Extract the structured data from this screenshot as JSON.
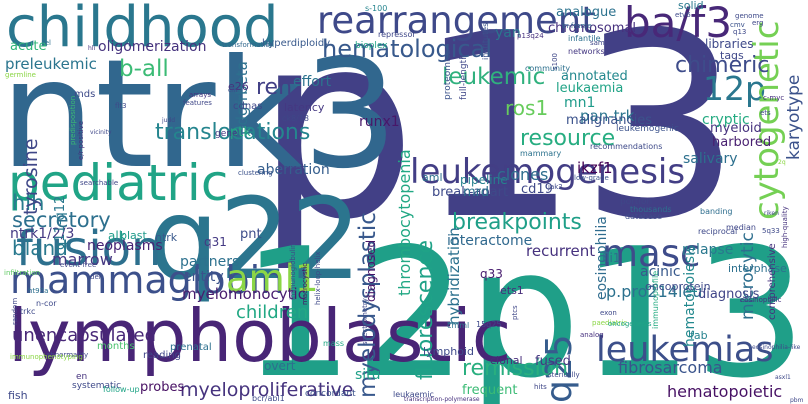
{
  "words": [
    {
      "text": "p13",
      "color": "#424086"
    },
    {
      "text": "12p13",
      "color": "#1f9f88"
    },
    {
      "text": "ntrk3",
      "color": "#31678e"
    },
    {
      "text": "q22",
      "color": "#2b758e"
    },
    {
      "text": "lymphoblastic",
      "color": "#482576"
    },
    {
      "text": "childhood",
      "color": "#2a778e"
    },
    {
      "text": "fusion",
      "color": "#2d708e"
    },
    {
      "text": "pediatric",
      "color": "#20a486"
    },
    {
      "text": "mammaglobin",
      "color": "#3c508b"
    },
    {
      "text": "rearrangement",
      "color": "#3e4989"
    },
    {
      "text": "ba/f3",
      "color": "#482878"
    },
    {
      "text": "leukemogenesis",
      "color": "#433e85"
    },
    {
      "text": "leukemias",
      "color": "#3c4f8a"
    },
    {
      "text": "masc",
      "color": "#3e4c8a"
    },
    {
      "text": "aml1",
      "color": "#8bd646"
    },
    {
      "text": "12p",
      "color": "#2a778e"
    },
    {
      "text": "q25",
      "color": "#365c8d"
    },
    {
      "text": "cytogenetic",
      "color": "#75d054"
    },
    {
      "text": "hematological",
      "color": "#38598c"
    },
    {
      "text": "leukemic",
      "color": "#30b17e"
    },
    {
      "text": "myelodysplastic",
      "color": "#38588c"
    },
    {
      "text": "fluorescence",
      "color": "#1fa287"
    },
    {
      "text": "b-all",
      "color": "#3bbb75"
    },
    {
      "text": "breakpoints",
      "color": "#1f9f88"
    },
    {
      "text": "translocations",
      "color": "#25858e"
    },
    {
      "text": "resource",
      "color": "#27ad81"
    },
    {
      "text": "remission",
      "color": "#29af7f"
    },
    {
      "text": "reh",
      "color": "#424086"
    },
    {
      "text": "chimeric",
      "color": "#3e4c8a"
    },
    {
      "text": "hlh",
      "color": "#287d8e"
    },
    {
      "text": "secretory",
      "color": "#2d708e"
    },
    {
      "text": "bland",
      "color": "#29798e"
    },
    {
      "text": "ros1",
      "color": "#67cc5c"
    },
    {
      "text": "myeloproliferative",
      "color": "#46337e"
    },
    {
      "text": "children",
      "color": "#22a884"
    },
    {
      "text": "unencapsulated",
      "color": "#482878"
    },
    {
      "text": "myelomonocytic",
      "color": "#481d6f"
    },
    {
      "text": "karyotype",
      "color": "#3b528b"
    },
    {
      "text": "thrombocytopenia",
      "color": "#22a884"
    },
    {
      "text": "hybridization",
      "color": "#2c718e"
    },
    {
      "text": "microcytic",
      "color": "#2e6f8e"
    },
    {
      "text": "fibrosarcoma",
      "color": "#3a548c"
    },
    {
      "text": "p.pro214leu",
      "color": "#2c718e"
    },
    {
      "text": "hematopoietic",
      "color": "#471164"
    },
    {
      "text": "hematopoiesis",
      "color": "#23898e"
    },
    {
      "text": "eosinophilia",
      "color": "#2f6c8e"
    },
    {
      "text": "oligomerization",
      "color": "#46337e"
    },
    {
      "text": "preleukemic",
      "color": "#2b758e"
    },
    {
      "text": "acute",
      "color": "#32b67a"
    },
    {
      "text": "tyrosine",
      "color": "#3f4788"
    },
    {
      "text": "ntrk1/2/3",
      "color": "#443983"
    },
    {
      "text": "marrow",
      "color": "#453882"
    },
    {
      "text": "neoplasms",
      "color": "#482475"
    },
    {
      "text": "q11-q12",
      "color": "#2a788e"
    },
    {
      "text": "pdgfrbeta",
      "color": "#2d708e"
    },
    {
      "text": "ptk",
      "color": "#25ab82"
    },
    {
      "text": "effort",
      "color": "#2c738e"
    },
    {
      "text": "runx1",
      "color": "#481769"
    },
    {
      "text": "aberration",
      "color": "#355e8d"
    },
    {
      "text": "clones",
      "color": "#2e6e8e"
    },
    {
      "text": "break-apart",
      "color": "#3e4a89"
    },
    {
      "text": "pan-trk",
      "color": "#2b758e"
    },
    {
      "text": "mn1",
      "color": "#1e9b8a"
    },
    {
      "text": "ikzf1",
      "color": "#440154"
    },
    {
      "text": "cd19",
      "color": "#3f4889"
    },
    {
      "text": "mrd",
      "color": "#2c728e"
    },
    {
      "text": "interactome",
      "color": "#30698e"
    },
    {
      "text": "recurrent",
      "color": "#46327e"
    },
    {
      "text": "relapse",
      "color": "#2a788e"
    },
    {
      "text": "acinic",
      "color": "#38598c"
    },
    {
      "text": "oncoprotein",
      "color": "#3e4a89"
    },
    {
      "text": "myeloid",
      "color": "#46327e"
    },
    {
      "text": "salivary",
      "color": "#2d708e"
    },
    {
      "text": "harbored",
      "color": "#481f70"
    },
    {
      "text": "cryptic",
      "color": "#25ab82"
    },
    {
      "text": "leukaemia",
      "color": "#20a386"
    },
    {
      "text": "malignancies",
      "color": "#3b528b"
    },
    {
      "text": "annotated",
      "color": "#23888e"
    },
    {
      "text": "chromosomal",
      "color": "#46307e"
    },
    {
      "text": "analogue",
      "color": "#2c728e"
    },
    {
      "text": "yan",
      "color": "#2b758e"
    },
    {
      "text": "solid",
      "color": "#29798e"
    },
    {
      "text": "libraries",
      "color": "#3e4989"
    },
    {
      "text": "tags",
      "color": "#3f4889"
    },
    {
      "text": "diagnosis",
      "color": "#404588"
    },
    {
      "text": "interphase",
      "color": "#2d708e"
    },
    {
      "text": "frequent",
      "color": "#3bbb75"
    },
    {
      "text": "partners",
      "color": "#2d718e"
    },
    {
      "text": "entity",
      "color": "#3b528b"
    },
    {
      "text": "pnt",
      "color": "#3d4d8a"
    },
    {
      "text": "q31",
      "color": "#443983"
    },
    {
      "text": "q33",
      "color": "#481d6f"
    },
    {
      "text": "alk",
      "color": "#1e9d89"
    },
    {
      "text": "ntrk",
      "color": "#38598c"
    },
    {
      "text": "fish",
      "color": "#3e4989"
    },
    {
      "text": "probes",
      "color": "#471063"
    },
    {
      "text": "fused",
      "color": "#453781"
    },
    {
      "text": "situ",
      "color": "#1fa088"
    },
    {
      "text": "clonal",
      "color": "#472c7a"
    },
    {
      "text": "overt",
      "color": "#2e6e8e"
    },
    {
      "text": "lymphoid",
      "color": "#3e4989"
    },
    {
      "text": "fab",
      "color": "#26828e"
    },
    {
      "text": "diagnosed",
      "color": "#481769"
    },
    {
      "text": "fli1",
      "color": "#2f6c8e"
    },
    {
      "text": "ets1",
      "color": "#472c7a"
    },
    {
      "text": "blast",
      "color": "#1f9a8a"
    },
    {
      "text": "latency",
      "color": "#453882"
    },
    {
      "text": "hyperdiploidy",
      "color": "#38598c"
    },
    {
      "text": "transformation",
      "color": "#31688e"
    },
    {
      "text": "pipeline",
      "color": "#26818e"
    },
    {
      "text": "aml",
      "color": "#2d718e"
    },
    {
      "text": "e26",
      "color": "#46337e"
    },
    {
      "text": "months",
      "color": "#4ac16d"
    },
    {
      "text": "cdnas",
      "color": "#3f4788"
    },
    {
      "text": "mds",
      "color": "#3e4a89"
    },
    {
      "text": "gene",
      "color": "#453882"
    },
    {
      "text": "prenatal",
      "color": "#2d708e"
    },
    {
      "text": "reading",
      "color": "#404588"
    },
    {
      "text": "bioplex",
      "color": "#20a386"
    },
    {
      "text": "repressor",
      "color": "#3f4788"
    },
    {
      "text": "s-100",
      "color": "#25848e"
    },
    {
      "text": "comprehensive",
      "color": "#46307e"
    },
    {
      "text": "systematic",
      "color": "#3e4989"
    },
    {
      "text": "follow-up",
      "color": "#20a486"
    },
    {
      "text": "infantile",
      "color": "#2d708e"
    },
    {
      "text": "in-frame",
      "color": "#31688e"
    },
    {
      "text": "networks",
      "color": "#453882"
    },
    {
      "text": "mammary",
      "color": "#2c728e"
    },
    {
      "text": "proteomics",
      "color": "#3b528b"
    },
    {
      "text": "full-length",
      "color": "#3f4788"
    },
    {
      "text": "institutes",
      "color": "#3b528b"
    },
    {
      "text": "community",
      "color": "#2d708e"
    },
    {
      "text": "macrocystic",
      "color": "#471063"
    },
    {
      "text": "helix-loop-helix",
      "color": "#3e4989"
    },
    {
      "text": "immunoglobulin",
      "color": "#3e4989"
    },
    {
      "text": "low-grade",
      "color": "#3b528b"
    },
    {
      "text": "portion",
      "color": "#3f4788"
    },
    {
      "text": "thousands",
      "color": "#2e6e8e"
    },
    {
      "text": "database",
      "color": "#3d4d8a"
    },
    {
      "text": "recommendations",
      "color": "#3e4a89"
    },
    {
      "text": "leukemogenic",
      "color": "#3b528b"
    },
    {
      "text": "banding",
      "color": "#2e6e8e"
    },
    {
      "text": "jak2",
      "color": "#3e4989"
    },
    {
      "text": "reciprocal",
      "color": "#3e4989"
    },
    {
      "text": "median",
      "color": "#3f4788"
    },
    {
      "text": "paediatric",
      "color": "#8bd646"
    },
    {
      "text": "cmml",
      "color": "#2c728e"
    },
    {
      "text": "15q25",
      "color": "#3e4989"
    },
    {
      "text": "ptcs",
      "color": "#3f4788"
    },
    {
      "text": "immunoprofile",
      "color": "#25ab82"
    },
    {
      "text": "oncogenesis",
      "color": "#20a486"
    },
    {
      "text": "spectrometry",
      "color": "#3e4989"
    },
    {
      "text": "mass",
      "color": "#22a884"
    },
    {
      "text": "analog",
      "color": "#46307e"
    },
    {
      "text": "exon",
      "color": "#3e4989"
    },
    {
      "text": "hits",
      "color": "#3f4788"
    },
    {
      "text": "sterically",
      "color": "#3e4989"
    },
    {
      "text": "concordant",
      "color": "#3b528b"
    },
    {
      "text": "leukaemic",
      "color": "#3e4989"
    },
    {
      "text": "bcr/abl1",
      "color": "#3e4989"
    },
    {
      "text": "transcription-polymerase",
      "color": "#46307e"
    },
    {
      "text": "en",
      "color": "#46337e"
    },
    {
      "text": "n-cor",
      "color": "#3e4989"
    },
    {
      "text": "trkc",
      "color": "#3e4989"
    },
    {
      "text": "random",
      "color": "#3f4788"
    },
    {
      "text": "ht93a",
      "color": "#2d708e"
    },
    {
      "text": "abnormality",
      "color": "#3f4788"
    },
    {
      "text": "immunophenotyping",
      "color": "#8bd646"
    },
    {
      "text": "infiltration",
      "color": "#5ec962"
    },
    {
      "text": "event-free",
      "color": "#3f4788"
    },
    {
      "text": "del",
      "color": "#3e4989"
    },
    {
      "text": "clustering",
      "color": "#3b528b"
    },
    {
      "text": "searchable",
      "color": "#3f4788"
    },
    {
      "text": "flt3",
      "color": "#3e4989"
    },
    {
      "text": "features",
      "color": "#3f4788"
    },
    {
      "text": "arrays",
      "color": "#46337e"
    },
    {
      "text": "ck8/18",
      "color": "#3f4788"
    },
    {
      "text": "predisposition",
      "color": "#3bbb75"
    },
    {
      "text": "e/r-positive",
      "color": "#46307e"
    },
    {
      "text": "germline",
      "color": "#8bd646"
    },
    {
      "text": "tel",
      "color": "#2d708e"
    },
    {
      "text": "etv6",
      "color": "#3e4989"
    },
    {
      "text": "erg",
      "color": "#3f4788"
    },
    {
      "text": "genome",
      "color": "#3e4989"
    },
    {
      "text": "cmv",
      "color": "#3b528b"
    },
    {
      "text": "ets",
      "color": "#3f4788"
    },
    {
      "text": "q13",
      "color": "#3e4989"
    },
    {
      "text": "p13q24",
      "color": "#46307e"
    },
    {
      "text": "sam",
      "color": "#3f4788"
    },
    {
      "text": "5q33",
      "color": "#3e4989"
    },
    {
      "text": "high-quality",
      "color": "#46337e"
    },
    {
      "text": "eosinophilic",
      "color": "#46307e"
    },
    {
      "text": "eosinophilia-like",
      "color": "#3e4989"
    },
    {
      "text": "s100",
      "color": "#3f4788"
    },
    {
      "text": "c-myc",
      "color": "#46307e"
    },
    {
      "text": "vicinity",
      "color": "#3f4788"
    },
    {
      "text": "cm",
      "color": "#3e4989"
    },
    {
      "text": "judd",
      "color": "#3e4989"
    },
    {
      "text": "hli",
      "color": "#46337e"
    },
    {
      "text": "riken",
      "color": "#3f4788"
    },
    {
      "text": "asxl1",
      "color": "#3e4989"
    },
    {
      "text": "pbm",
      "color": "#3f4788"
    },
    {
      "text": "2q",
      "color": "#8bd646"
    }
  ]
}
